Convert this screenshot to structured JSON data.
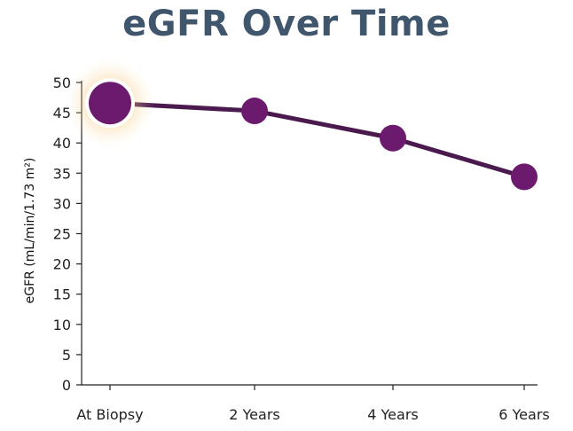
{
  "chart_data": {
    "type": "line",
    "title": "eGFR Over Time",
    "xlabel": "",
    "ylabel": "eGFR (mL/min/1.73 m²)",
    "categories": [
      "At Biopsy",
      "2 Years",
      "4 Years",
      "6 Years"
    ],
    "series": [
      {
        "values": [
          46.6,
          45.3,
          40.8,
          34.4
        ]
      }
    ],
    "ylim": [
      0,
      50
    ],
    "yticks": [
      "0",
      "5",
      "10",
      "15",
      "20",
      "25",
      "30",
      "35",
      "40",
      "45",
      "50"
    ],
    "grid": false,
    "legend": "none",
    "highlighted_point": "At Biopsy",
    "colors": {
      "title": "#3f566d",
      "line": "#4a1a4f",
      "marker": "#6b1a6e",
      "highlight_glow": "#f5a623",
      "axis": "#222222"
    }
  }
}
